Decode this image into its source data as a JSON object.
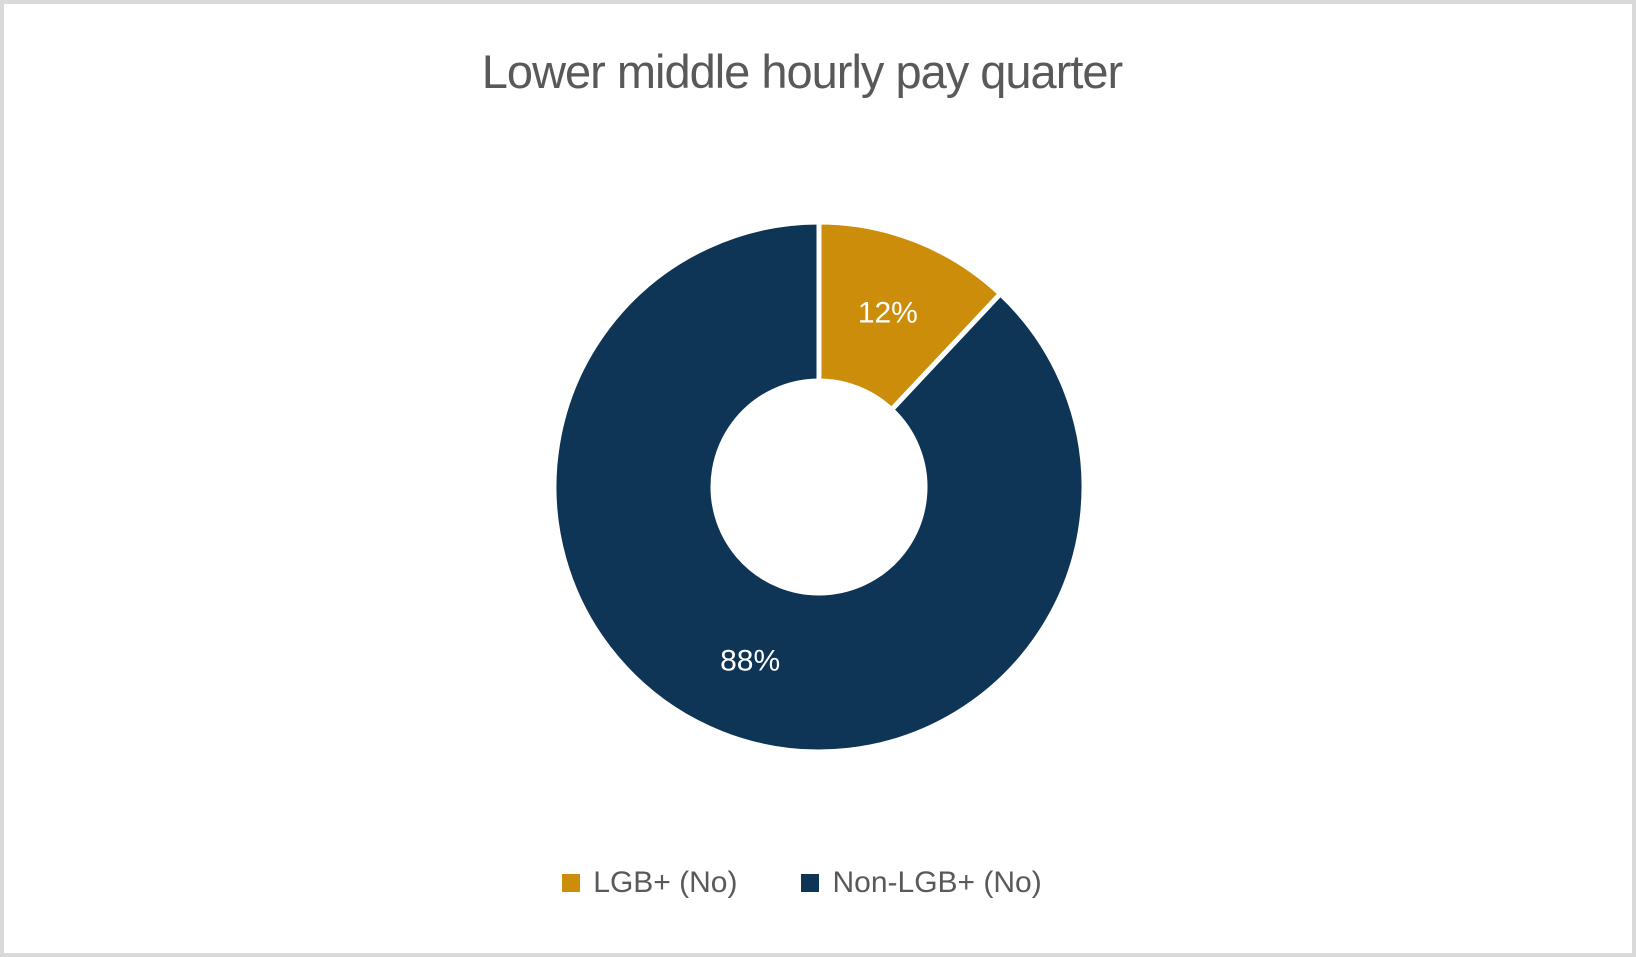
{
  "chart_data": {
    "type": "pie",
    "subtype": "doughnut",
    "title": "Lower middle hourly pay quarter",
    "categories": [
      "LGB+ (No)",
      "Non-LGB+ (No)"
    ],
    "values": [
      12,
      88
    ],
    "data_labels": [
      "12%",
      "88%"
    ],
    "colors": [
      "#CC8E0A",
      "#0E3456"
    ],
    "hole_ratio": 0.4,
    "start_angle_deg": 0,
    "direction": "clockwise",
    "legend_position": "bottom",
    "styles": {
      "title_color": "#595959",
      "legend_text_color": "#595959",
      "data_label_color": "#FFFFFF",
      "separator_color": "#FFFFFF",
      "background": "#FFFFFF",
      "frame_border_color": "#D9D9D9"
    }
  }
}
